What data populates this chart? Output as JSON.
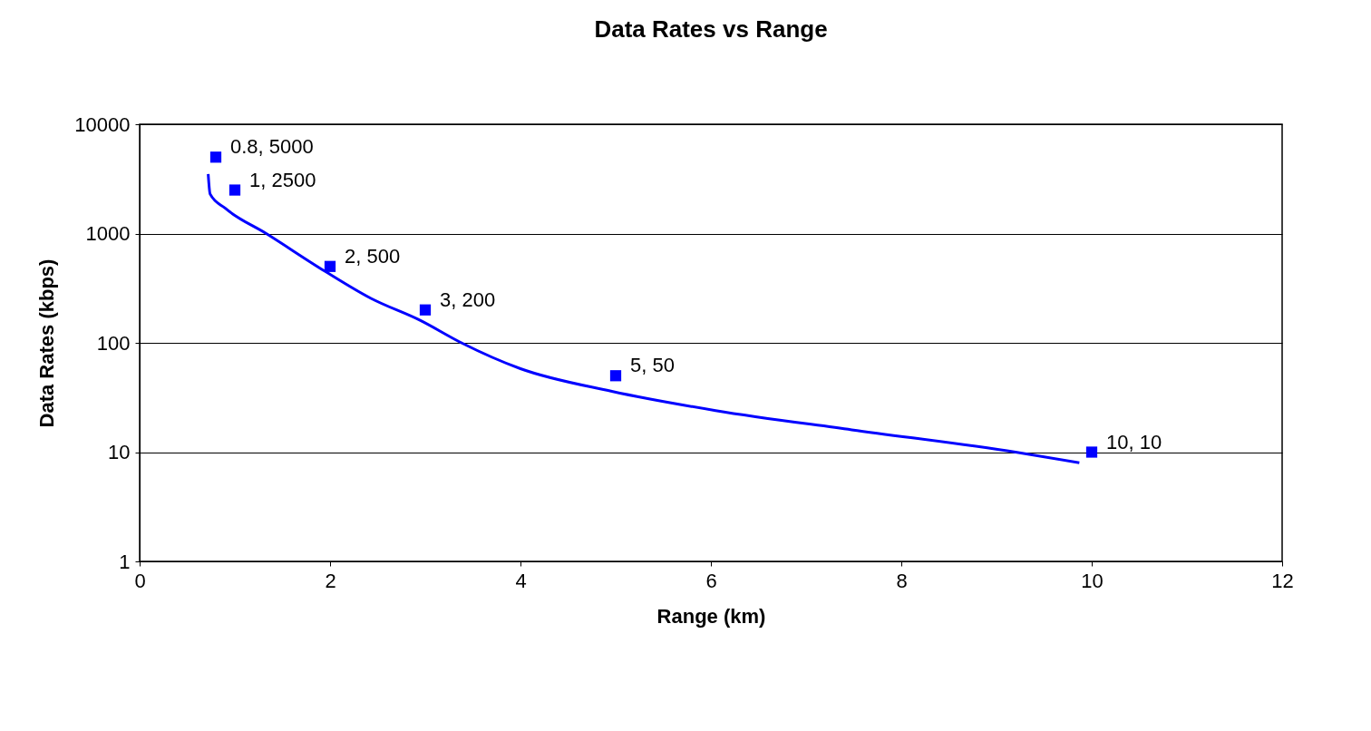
{
  "chart_data": {
    "type": "scatter",
    "title": "Data Rates vs Range",
    "xlabel": "Range (km)",
    "ylabel": "Data Rates (kbps)",
    "xlim": [
      0,
      12
    ],
    "xticks": [
      0,
      2,
      4,
      6,
      8,
      10,
      12
    ],
    "ylim": [
      1,
      10000
    ],
    "yticks": [
      1,
      10,
      100,
      1000,
      10000
    ],
    "log": "y",
    "grid": "y",
    "series": [
      {
        "type": "scatter",
        "color": "#0000ff",
        "marker": "square",
        "x": [
          0.8,
          1,
          2,
          3,
          5,
          10
        ],
        "values": [
          5000,
          2500,
          500,
          200,
          50,
          10
        ],
        "value_labels": [
          "0.8, 5000",
          "1, 2500",
          "2, 500",
          "3, 200",
          "5, 50",
          "10, 10"
        ]
      },
      {
        "type": "line",
        "color": "#0000ff",
        "line_style": "solid",
        "x": [
          0.72,
          0.74,
          0.9,
          1.33,
          1.95,
          2.43,
          2.95,
          3.38,
          4.0,
          4.96,
          6.05,
          7.48,
          9.2,
          9.87
        ],
        "values": [
          3500,
          2300,
          1700,
          1000,
          450,
          255,
          160,
          100,
          58,
          36,
          24,
          16,
          10,
          8
        ]
      }
    ]
  }
}
